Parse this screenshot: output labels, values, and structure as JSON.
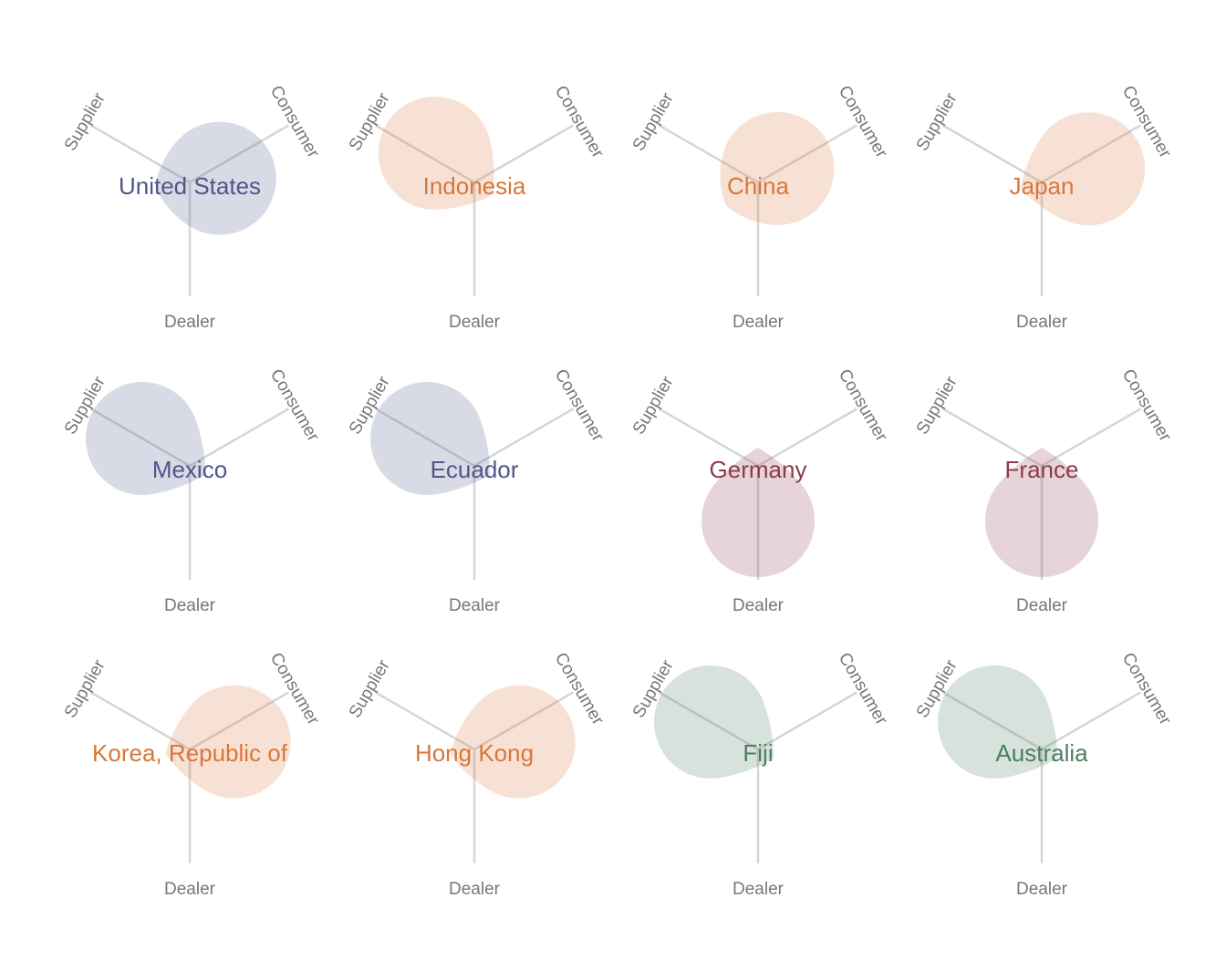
{
  "chart_data": {
    "type": "radar",
    "axes": [
      "Supplier",
      "Consumer",
      "Dealer"
    ],
    "colors": {
      "blue": "#4f5688",
      "orange": "#d9773a",
      "red": "#8c3b4c",
      "green": "#4d7d63"
    },
    "series": [
      {
        "name": "United States",
        "color": "blue",
        "values": {
          "Supplier": 0.25,
          "Consumer": 0.9,
          "Dealer": 0.5
        }
      },
      {
        "name": "Indonesia",
        "color": "orange",
        "values": {
          "Supplier": 0.95,
          "Consumer": 0.25,
          "Dealer": 0.15
        }
      },
      {
        "name": "China",
        "color": "orange",
        "values": {
          "Supplier": 0.45,
          "Consumer": 0.9,
          "Dealer": 0.4
        }
      },
      {
        "name": "Japan",
        "color": "orange",
        "values": {
          "Supplier": 0.1,
          "Consumer": 0.9,
          "Dealer": 0.3
        }
      },
      {
        "name": "Mexico",
        "color": "blue",
        "values": {
          "Supplier": 0.95,
          "Consumer": 0.1,
          "Dealer": 0.1
        }
      },
      {
        "name": "Ecuador",
        "color": "blue",
        "values": {
          "Supplier": 0.95,
          "Consumer": 0.1,
          "Dealer": 0.1
        }
      },
      {
        "name": "Germany",
        "color": "red",
        "values": {
          "Supplier": 0.1,
          "Consumer": 0.1,
          "Dealer": 0.9
        }
      },
      {
        "name": "France",
        "color": "red",
        "values": {
          "Supplier": 0.15,
          "Consumer": 0.15,
          "Dealer": 0.9
        }
      },
      {
        "name": "Korea, Republic of",
        "color": "orange",
        "values": {
          "Supplier": 0.1,
          "Consumer": 0.95,
          "Dealer": 0.4
        }
      },
      {
        "name": "Hong Kong",
        "color": "orange",
        "values": {
          "Supplier": 0.1,
          "Consumer": 0.95,
          "Dealer": 0.4
        }
      },
      {
        "name": "Fiji",
        "color": "green",
        "values": {
          "Supplier": 0.95,
          "Consumer": 0.1,
          "Dealer": 0.1
        }
      },
      {
        "name": "Australia",
        "color": "green",
        "values": {
          "Supplier": 0.95,
          "Consumer": 0.1,
          "Dealer": 0.1
        }
      }
    ]
  }
}
